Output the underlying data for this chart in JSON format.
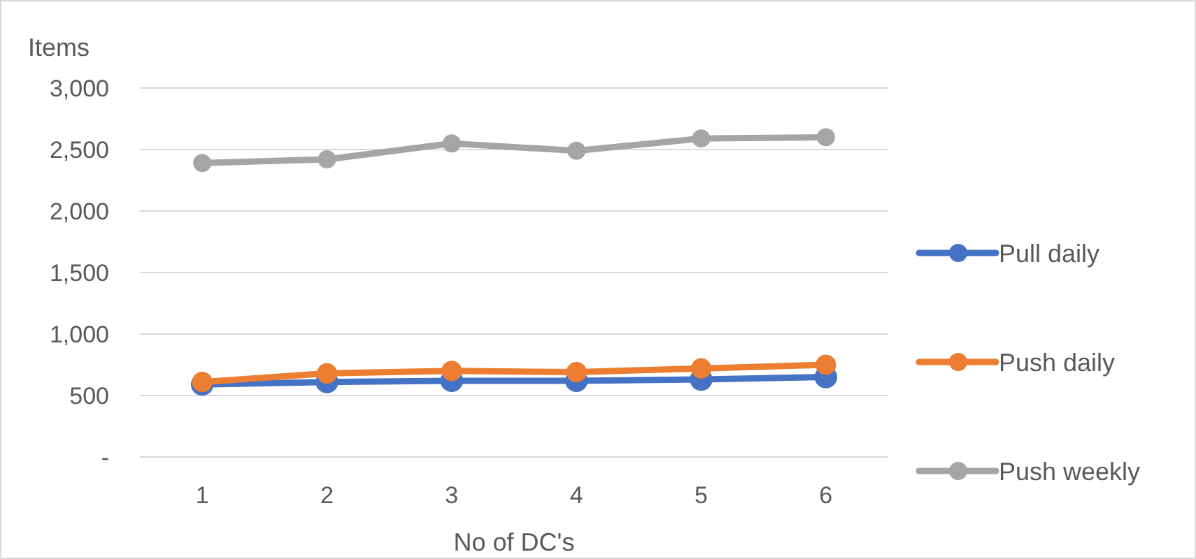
{
  "chart_data": {
    "type": "line",
    "xlabel": "No of DC's",
    "ylabel": "Items",
    "categories": [
      "1",
      "2",
      "3",
      "4",
      "5",
      "6"
    ],
    "series": [
      {
        "name": "Pull daily",
        "color": "#4472c4",
        "values": [
          590,
          610,
          620,
          620,
          630,
          650
        ]
      },
      {
        "name": "Push daily",
        "color": "#ed7d31",
        "values": [
          610,
          680,
          700,
          690,
          720,
          750
        ]
      },
      {
        "name": "Push weekly",
        "color": "#a5a5a5",
        "values": [
          2390,
          2420,
          2550,
          2490,
          2590,
          2600
        ]
      }
    ],
    "ylim": [
      0,
      3000
    ],
    "yticks": [
      {
        "value": 0,
        "label": "-"
      },
      {
        "value": 500,
        "label": "500"
      },
      {
        "value": 1000,
        "label": "1,000"
      },
      {
        "value": 1500,
        "label": "1,500"
      },
      {
        "value": 2000,
        "label": "2,000"
      },
      {
        "value": 2500,
        "label": "2,500"
      },
      {
        "value": 3000,
        "label": "3,000"
      }
    ],
    "grid": "y",
    "legend": "right",
    "marker": "circle",
    "line_style": "solid"
  }
}
